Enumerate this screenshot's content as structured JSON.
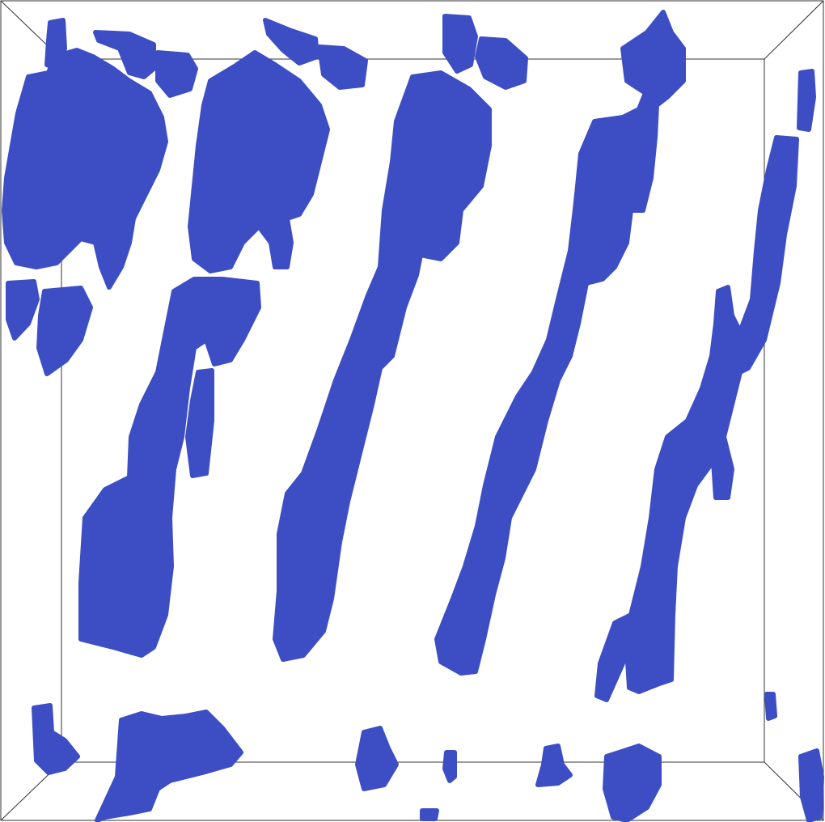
{
  "scene": {
    "kind": "3d-isosurface-render",
    "colors": {
      "background": "#ffffff",
      "blob": "#3d4ec4",
      "box_edge": "#333333"
    }
  }
}
